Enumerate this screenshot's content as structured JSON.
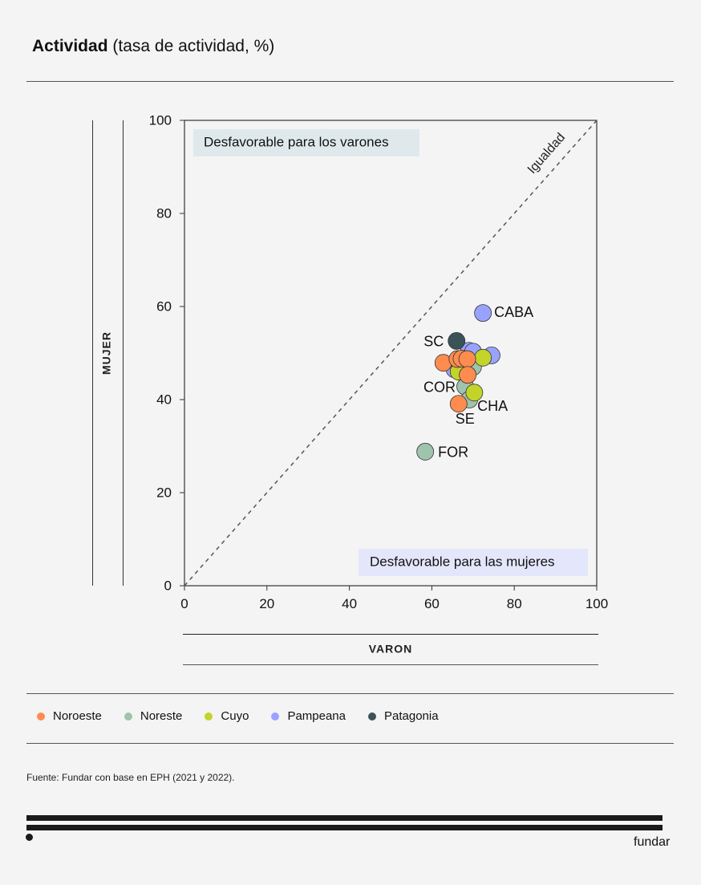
{
  "header": {
    "title_strong": "Actividad",
    "title_rest": " (tasa de actividad, %)"
  },
  "chart_data": {
    "type": "scatter",
    "title": "Actividad (tasa de actividad, %)",
    "xlabel": "VARON",
    "ylabel": "MUJER",
    "xlim": [
      0,
      100
    ],
    "ylim": [
      0,
      100
    ],
    "xticks": [
      "0",
      "20",
      "40",
      "60",
      "80",
      "100"
    ],
    "yticks": [
      "0",
      "20",
      "40",
      "60",
      "80",
      "100"
    ],
    "diagonal_label": "Igualdad",
    "annotations": {
      "upper_left": "Desfavorable para los varones",
      "lower_right": "Desfavorable para las mujeres"
    },
    "grid": false,
    "legend_position": "bottom",
    "colors": {
      "Noroeste": "#ff8c4f",
      "Noreste": "#9fc3ad",
      "Cuyo": "#c2d42a",
      "Pampeana": "#99a3ff",
      "Patagonia": "#3b5358"
    },
    "series": [
      {
        "name": "Pampeana",
        "points": [
          {
            "x": 69.0,
            "y": 50.5,
            "label": ""
          },
          {
            "x": 70.0,
            "y": 50.3,
            "label": ""
          },
          {
            "x": 74.5,
            "y": 49.5,
            "label": ""
          },
          {
            "x": 65.5,
            "y": 46.5,
            "label": ""
          },
          {
            "x": 72.4,
            "y": 58.6,
            "label": "CABA"
          }
        ]
      },
      {
        "name": "Patagonia",
        "points": [
          {
            "x": 66.5,
            "y": 48.0,
            "label": ""
          },
          {
            "x": 66.0,
            "y": 52.6,
            "label": "SC"
          }
        ]
      },
      {
        "name": "Noreste",
        "points": [
          {
            "x": 70.0,
            "y": 47.0,
            "label": ""
          },
          {
            "x": 68.1,
            "y": 42.8,
            "label": "COR"
          },
          {
            "x": 69.1,
            "y": 40.0,
            "label": "CHA"
          },
          {
            "x": 58.4,
            "y": 28.8,
            "label": "FOR"
          }
        ]
      },
      {
        "name": "Cuyo",
        "points": [
          {
            "x": 72.4,
            "y": 49.0,
            "label": ""
          },
          {
            "x": 66.5,
            "y": 46.0,
            "label": ""
          },
          {
            "x": 70.3,
            "y": 41.5,
            "label": ""
          }
        ]
      },
      {
        "name": "Noroeste",
        "points": [
          {
            "x": 62.8,
            "y": 47.9,
            "label": ""
          },
          {
            "x": 66.2,
            "y": 48.7,
            "label": ""
          },
          {
            "x": 67.2,
            "y": 48.8,
            "label": ""
          },
          {
            "x": 68.6,
            "y": 48.7,
            "label": ""
          },
          {
            "x": 68.7,
            "y": 45.3,
            "label": ""
          },
          {
            "x": 66.5,
            "y": 39.1,
            "label": "SE"
          }
        ]
      }
    ]
  },
  "legend": [
    {
      "label": "Noroeste",
      "color": "#ff8c4f"
    },
    {
      "label": "Noreste",
      "color": "#9fc3ad"
    },
    {
      "label": "Cuyo",
      "color": "#c2d42a"
    },
    {
      "label": "Pampeana",
      "color": "#99a3ff"
    },
    {
      "label": "Patagonia",
      "color": "#3b5358"
    }
  ],
  "footer": {
    "source_label": "Fuente:",
    "source_text": " Fundar con base en EPH (2021 y 2022).",
    "brand": "fundar"
  }
}
